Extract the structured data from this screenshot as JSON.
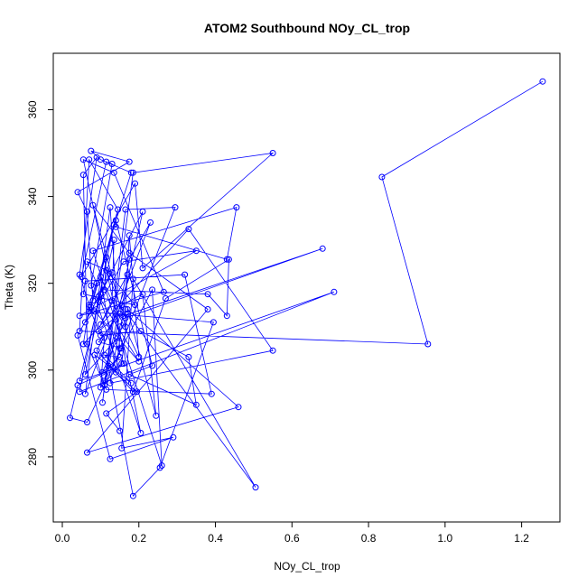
{
  "chart_data": {
    "type": "line",
    "title": "ATOM2 Southbound NOy_CL_trop",
    "xlabel": "NOy_CL_trop",
    "ylabel": "Theta (K)",
    "xlim": [
      0,
      1.3
    ],
    "ylim": [
      265,
      373
    ],
    "x_ticks": [
      0.0,
      0.2,
      0.4,
      0.6,
      0.8,
      1.0,
      1.2
    ],
    "x_tick_labels": [
      "0.0",
      "0.2",
      "0.4",
      "0.6",
      "0.8",
      "1.0",
      "1.2"
    ],
    "y_ticks": [
      280,
      300,
      320,
      340,
      360
    ],
    "y_tick_labels": [
      "280",
      "300",
      "320",
      "340",
      "360"
    ],
    "grid": false,
    "legend": "none",
    "markers": "open-circle",
    "color": "#0000ff",
    "series": [
      {
        "x": [
          1.255,
          0.835,
          0.955,
          0.045,
          0.07,
          0.145,
          0.08,
          0.065,
          0.04,
          0.175,
          0.075,
          0.1,
          0.18,
          0.07,
          0.045,
          0.09,
          0.055,
          0.065,
          0.11,
          0.21,
          0.06,
          0.085,
          0.16,
          0.35,
          0.045,
          0.265,
          0.135,
          0.055,
          0.205,
          0.075,
          0.13,
          0.115,
          0.05,
          0.19,
          0.21,
          0.55,
          0.185,
          0.105,
          0.165,
          0.295,
          0.15,
          0.125,
          0.06,
          0.23,
          0.175,
          0.11,
          0.235,
          0.26,
          0.08,
          0.455,
          0.43,
          0.14,
          0.135,
          0.045,
          0.71,
          0.045,
          0.1,
          0.115,
          0.11,
          0.38,
          0.43,
          0.435,
          0.27,
          0.185,
          0.09,
          0.155,
          0.21,
          0.245,
          0.17,
          0.46,
          0.065,
          0.38,
          0.175,
          0.08,
          0.165,
          0.165,
          0.175,
          0.2,
          0.1,
          0.14,
          0.17,
          0.1,
          0.13,
          0.135,
          0.06,
          0.145,
          0.105,
          0.15,
          0.11,
          0.18,
          0.085,
          0.115,
          0.39,
          0.32,
          0.06,
          0.055,
          0.19,
          0.115,
          0.165,
          0.68,
          0.16,
          0.15,
          0.125,
          0.55,
          0.33,
          0.055,
          0.07,
          0.1,
          0.205,
          0.33,
          0.35,
          0.175,
          0.235,
          0.14,
          0.075,
          0.2,
          0.095,
          0.16,
          0.04,
          0.02,
          0.065,
          0.155,
          0.095,
          0.15,
          0.095,
          0.11,
          0.1,
          0.155,
          0.17,
          0.505,
          0.185,
          0.155,
          0.29,
          0.125,
          0.04,
          0.13,
          0.065,
          0.09,
          0.07,
          0.395,
          0.255,
          0.185,
          0.12,
          0.195,
          0.115,
          0.15
        ],
        "y": [
          366.5,
          344.5,
          306,
          309,
          348.5,
          337,
          316,
          336.5,
          341,
          348,
          350.5,
          348.5,
          345.5,
          315,
          322,
          349,
          345,
          306,
          296.5,
          336.5,
          311,
          313.5,
          325,
          327.5,
          312.5,
          318,
          345.5,
          348.5,
          285.5,
          319.5,
          347.5,
          348,
          321.5,
          343,
          323.5,
          350,
          345.5,
          292.5,
          337,
          337.5,
          305,
          337.5,
          294.5,
          334,
          325.5,
          297.5,
          318.5,
          278,
          327.5,
          337.5,
          325.5,
          333,
          333.5,
          295,
          318,
          297.5,
          317.5,
          326,
          318.5,
          317.5,
          312.5,
          325.5,
          316.5,
          295,
          304.5,
          315,
          317.5,
          289.5,
          314,
          291.5,
          281,
          314,
          327,
          338,
          310,
          314,
          331,
          303,
          321.5,
          299.5,
          322,
          310.5,
          316,
          330,
          299,
          307.5,
          299.5,
          303,
          303.5,
          297,
          303.5,
          295.5,
          294.5,
          322,
          320.5,
          317.5,
          315,
          323,
          312,
          328,
          312.5,
          310,
          297,
          304.5,
          332.5,
          306,
          314.5,
          308,
          309,
          303,
          292,
          299,
          301,
          334.5,
          314.5,
          302,
          317,
          301.5,
          296.5,
          289,
          288,
          305,
          306.5,
          313,
          309,
          307.5,
          296,
          301.5,
          313,
          273,
          321,
          282,
          284.5,
          279.5,
          308,
          322.5,
          325,
          320,
          313.5,
          311,
          277.5,
          271,
          301,
          295,
          290,
          286
        ]
      }
    ]
  }
}
